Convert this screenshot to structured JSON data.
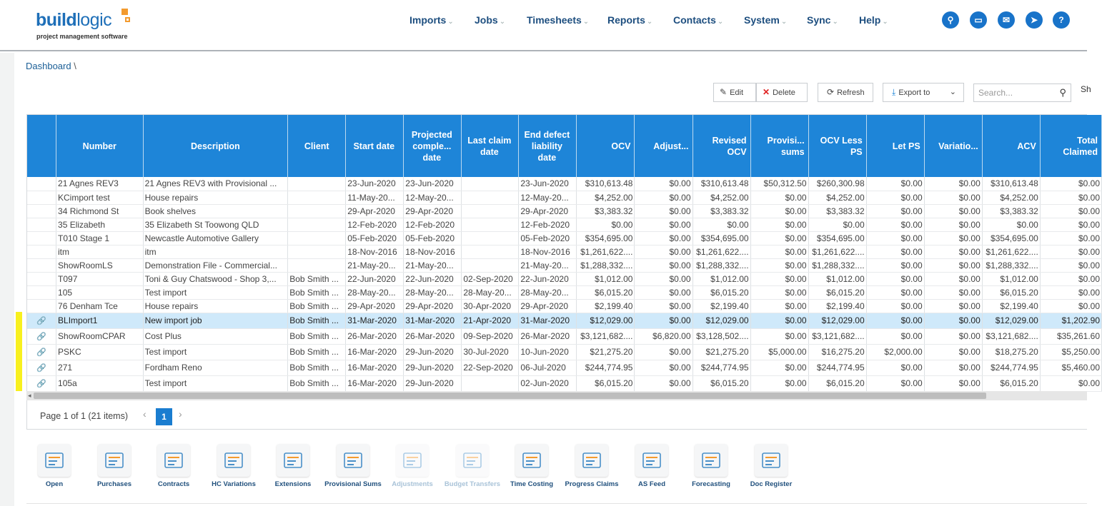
{
  "logo": {
    "main_a": "build",
    "main_b": "logic",
    "sub": "project management software"
  },
  "nav": [
    "Imports",
    "Jobs",
    "Timesheets",
    "Reports",
    "Contacts",
    "System",
    "Sync",
    "Help"
  ],
  "top_icons": [
    "search-icon",
    "folder-icon",
    "mail-icon",
    "send-icon",
    "help-icon"
  ],
  "breadcrumb": {
    "label": "Dashboard",
    "sep": "\\"
  },
  "toolbar": {
    "edit": "Edit",
    "delete": "Delete",
    "refresh": "Refresh",
    "export": "Export to",
    "search_placeholder": "Search...",
    "overflow": "Sh"
  },
  "grid": {
    "columns": [
      "",
      "Number",
      "Description",
      "Client",
      "Start date",
      "Projected comple... date",
      "Last claim date",
      "End defect liability date",
      "OCV",
      "Adjust...",
      "Revised OCV",
      "Provisi... sums",
      "OCV Less PS",
      "Let PS",
      "Variatio...",
      "ACV",
      "Total Claimed"
    ],
    "rows": [
      [
        "",
        "21 Agnes REV3",
        "21 Agnes REV3 with Provisional ...",
        "",
        "23-Jun-2020",
        "23-Jun-2020",
        "",
        "23-Jun-2020",
        "$310,613.48",
        "$0.00",
        "$310,613.48",
        "$50,312.50",
        "$260,300.98",
        "$0.00",
        "$0.00",
        "$310,613.48",
        "$0.00"
      ],
      [
        "",
        "KCimport test",
        "House repairs",
        "",
        "11-May-20...",
        "12-May-20...",
        "",
        "12-May-20...",
        "$4,252.00",
        "$0.00",
        "$4,252.00",
        "$0.00",
        "$4,252.00",
        "$0.00",
        "$0.00",
        "$4,252.00",
        "$0.00"
      ],
      [
        "",
        "34 Richmond St",
        "Book shelves",
        "",
        "29-Apr-2020",
        "29-Apr-2020",
        "",
        "29-Apr-2020",
        "$3,383.32",
        "$0.00",
        "$3,383.32",
        "$0.00",
        "$3,383.32",
        "$0.00",
        "$0.00",
        "$3,383.32",
        "$0.00"
      ],
      [
        "",
        "35 Elizabeth",
        "35 Elizabeth St Toowong QLD",
        "",
        "12-Feb-2020",
        "12-Feb-2020",
        "",
        "12-Feb-2020",
        "$0.00",
        "$0.00",
        "$0.00",
        "$0.00",
        "$0.00",
        "$0.00",
        "$0.00",
        "$0.00",
        "$0.00"
      ],
      [
        "",
        "T010 Stage 1",
        "Newcastle Automotive Gallery",
        "",
        "05-Feb-2020",
        "05-Feb-2020",
        "",
        "05-Feb-2020",
        "$354,695.00",
        "$0.00",
        "$354,695.00",
        "$0.00",
        "$354,695.00",
        "$0.00",
        "$0.00",
        "$354,695.00",
        "$0.00"
      ],
      [
        "",
        "itm",
        "itm",
        "",
        "18-Nov-2016",
        "18-Nov-2016",
        "",
        "18-Nov-2016",
        "$1,261,622....",
        "$0.00",
        "$1,261,622....",
        "$0.00",
        "$1,261,622....",
        "$0.00",
        "$0.00",
        "$1,261,622....",
        "$0.00"
      ],
      [
        "",
        "ShowRoomLS",
        "Demonstration File - Commercial...",
        "",
        "21-May-20...",
        "21-May-20...",
        "",
        "21-May-20...",
        "$1,288,332....",
        "$0.00",
        "$1,288,332....",
        "$0.00",
        "$1,288,332....",
        "$0.00",
        "$0.00",
        "$1,288,332....",
        "$0.00"
      ],
      [
        "",
        "T097",
        "Toni & Guy Chatswood - Shop 3,...",
        "Bob Smith ...",
        "22-Jun-2020",
        "22-Jun-2020",
        "02-Sep-2020",
        "22-Jun-2020",
        "$1,012.00",
        "$0.00",
        "$1,012.00",
        "$0.00",
        "$1,012.00",
        "$0.00",
        "$0.00",
        "$1,012.00",
        "$0.00"
      ],
      [
        "",
        "105",
        "Test import",
        "Bob Smith ...",
        "28-May-20...",
        "28-May-20...",
        "28-May-20...",
        "28-May-20...",
        "$6,015.20",
        "$0.00",
        "$6,015.20",
        "$0.00",
        "$6,015.20",
        "$0.00",
        "$0.00",
        "$6,015.20",
        "$0.00"
      ],
      [
        "",
        "76 Denham Tce",
        "House repairs",
        "Bob Smith ...",
        "29-Apr-2020",
        "29-Apr-2020",
        "30-Apr-2020",
        "29-Apr-2020",
        "$2,199.40",
        "$0.00",
        "$2,199.40",
        "$0.00",
        "$2,199.40",
        "$0.00",
        "$0.00",
        "$2,199.40",
        "$0.00"
      ],
      [
        "link",
        "BLImport1",
        "New import job",
        "Bob Smith ...",
        "31-Mar-2020",
        "31-Mar-2020",
        "21-Apr-2020",
        "31-Mar-2020",
        "$12,029.00",
        "$0.00",
        "$12,029.00",
        "$0.00",
        "$12,029.00",
        "$0.00",
        "$0.00",
        "$12,029.00",
        "$1,202.90"
      ],
      [
        "link",
        "ShowRoomCPAR",
        "Cost Plus",
        "Bob Smith ...",
        "26-Mar-2020",
        "26-Mar-2020",
        "09-Sep-2020",
        "26-Mar-2020",
        "$3,121,682....",
        "$6,820.00",
        "$3,128,502....",
        "$0.00",
        "$3,121,682....",
        "$0.00",
        "$0.00",
        "$3,121,682....",
        "$35,261.60"
      ],
      [
        "link",
        "PSKC",
        "Test import",
        "Bob Smith ...",
        "16-Mar-2020",
        "29-Jun-2020",
        "30-Jul-2020",
        "10-Jun-2020",
        "$21,275.20",
        "$0.00",
        "$21,275.20",
        "$5,000.00",
        "$16,275.20",
        "$2,000.00",
        "$0.00",
        "$18,275.20",
        "$5,250.00"
      ],
      [
        "link",
        "271",
        "Fordham Reno",
        "Bob Smith ...",
        "16-Mar-2020",
        "29-Jun-2020",
        "22-Sep-2020",
        "06-Jul-2020",
        "$244,774.95",
        "$0.00",
        "$244,774.95",
        "$0.00",
        "$244,774.95",
        "$0.00",
        "$0.00",
        "$244,774.95",
        "$5,460.00"
      ],
      [
        "link",
        "105a",
        "Test import",
        "Bob Smith ...",
        "16-Mar-2020",
        "29-Jun-2020",
        "",
        "02-Jun-2020",
        "$6,015.20",
        "$0.00",
        "$6,015.20",
        "$0.00",
        "$6,015.20",
        "$0.00",
        "$0.00",
        "$6,015.20",
        "$0.00"
      ]
    ],
    "selected_row": 10
  },
  "pager": {
    "text": "Page 1 of 1 (21 items)",
    "current": "1"
  },
  "tools": [
    {
      "label": "Open",
      "icon": "folder-icon",
      "enabled": true
    },
    {
      "label": "Purchases",
      "icon": "coins-icon",
      "enabled": true
    },
    {
      "label": "Contracts",
      "icon": "contract-icon",
      "enabled": true
    },
    {
      "label": "HC Variations",
      "icon": "variations-icon",
      "enabled": true
    },
    {
      "label": "Extensions",
      "icon": "clock-calendar-icon",
      "enabled": true
    },
    {
      "label": "Provisional Sums",
      "icon": "money-icon",
      "enabled": true
    },
    {
      "label": "Adjustments",
      "icon": "arrows-icon",
      "enabled": false
    },
    {
      "label": "Budget Transfers",
      "icon": "transfer-icon",
      "enabled": false
    },
    {
      "label": "Time Costing",
      "icon": "time-costing-icon",
      "enabled": true
    },
    {
      "label": "Progress Claims",
      "icon": "progress-claims-icon",
      "enabled": true
    },
    {
      "label": "AS Feed",
      "icon": "feed-icon",
      "enabled": true
    },
    {
      "label": "Forecasting",
      "icon": "chart-icon",
      "enabled": true
    },
    {
      "label": "Doc Register",
      "icon": "doc-register-icon",
      "enabled": true
    }
  ],
  "colors": {
    "accent": "#1e85d8",
    "selected": "#cfe9fa",
    "nav": "#1d4e7f",
    "logo_orange": "#f39a2e"
  }
}
